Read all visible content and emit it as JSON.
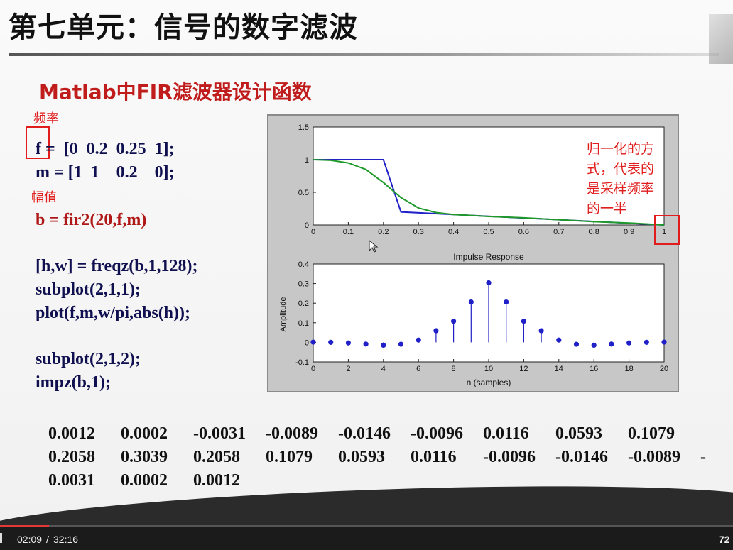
{
  "slide": {
    "title": "第七单元：信号的数字滤波",
    "subtitle": "Matlab中FIR滤波器设计函数"
  },
  "annotations": {
    "freq_label": "频率",
    "amp_label": "幅值",
    "normalization_note": [
      "归一化的方",
      "式，代表的",
      "是采样频率",
      "的一半"
    ]
  },
  "code_lines": [
    "f =  [0  0.2  0.25  1];",
    "m = [1  1    0.2    0];",
    "b = fir2(20,f,m)",
    "[h,w] = freqz(b,1,128);",
    "subplot(2,1,1);",
    "plot(f,m,w/pi,abs(h));",
    "subplot(2,1,2);",
    "impz(b,1);"
  ],
  "coefficients": [
    [
      "0.0012",
      "0.0002",
      "-0.0031",
      "-0.0089",
      "-0.0146",
      "-0.0096",
      "0.0116",
      "0.0593",
      "0.1079"
    ],
    [
      "0.2058",
      "0.3039",
      "0.2058",
      "0.1079",
      "0.0593",
      "0.0116",
      "-0.0096",
      "-0.0146",
      "-0.0089",
      "-"
    ],
    [
      "0.0031",
      "0.0002",
      "0.0012"
    ]
  ],
  "chart_data": [
    {
      "type": "line",
      "title": "",
      "xlabel": "",
      "ylabel": "",
      "xlim": [
        0,
        1
      ],
      "ylim": [
        0,
        1.5
      ],
      "xticks": [
        "0",
        "0.1",
        "0.2",
        "0.3",
        "0.4",
        "0.5",
        "0.6",
        "0.7",
        "0.8",
        "0.9",
        "1"
      ],
      "yticks": [
        "0",
        "0.5",
        "1",
        "1.5"
      ],
      "series": [
        {
          "color": "#2020c8",
          "x": [
            0,
            0.2,
            0.25,
            1
          ],
          "y": [
            1,
            1,
            0.2,
            0
          ]
        },
        {
          "color": "#1f9a2a",
          "x": [
            0,
            0.05,
            0.1,
            0.15,
            0.2,
            0.25,
            0.3,
            0.35,
            0.4,
            0.5,
            0.6,
            0.7,
            0.8,
            0.9,
            1.0
          ],
          "y": [
            1.0,
            0.99,
            0.95,
            0.85,
            0.65,
            0.42,
            0.26,
            0.19,
            0.16,
            0.13,
            0.11,
            0.08,
            0.05,
            0.03,
            0.0
          ]
        }
      ]
    },
    {
      "type": "scatter",
      "title": "Impulse Response",
      "xlabel": "n (samples)",
      "ylabel": "Amplitude",
      "xlim": [
        0,
        20
      ],
      "ylim": [
        -0.1,
        0.4
      ],
      "xticks": [
        "0",
        "2",
        "4",
        "6",
        "8",
        "10",
        "12",
        "14",
        "16",
        "18",
        "20"
      ],
      "yticks": [
        "-0.1",
        "0",
        "0.1",
        "0.2",
        "0.3",
        "0.4"
      ],
      "marker_color": "#2020c8",
      "x": [
        0,
        1,
        2,
        3,
        4,
        5,
        6,
        7,
        8,
        9,
        10,
        11,
        12,
        13,
        14,
        15,
        16,
        17,
        18,
        19,
        20
      ],
      "y": [
        0.0012,
        0.0002,
        -0.0031,
        -0.0089,
        -0.0146,
        -0.0096,
        0.0116,
        0.0593,
        0.1079,
        0.2058,
        0.3039,
        0.2058,
        0.1079,
        0.0593,
        0.0116,
        -0.0096,
        -0.0146,
        -0.0089,
        -0.0031,
        0.0002,
        0.0012
      ]
    }
  ],
  "player": {
    "current_time": "02:09",
    "separator": "/",
    "duration": "32:16",
    "right_label": "72",
    "progress": 0.067
  }
}
